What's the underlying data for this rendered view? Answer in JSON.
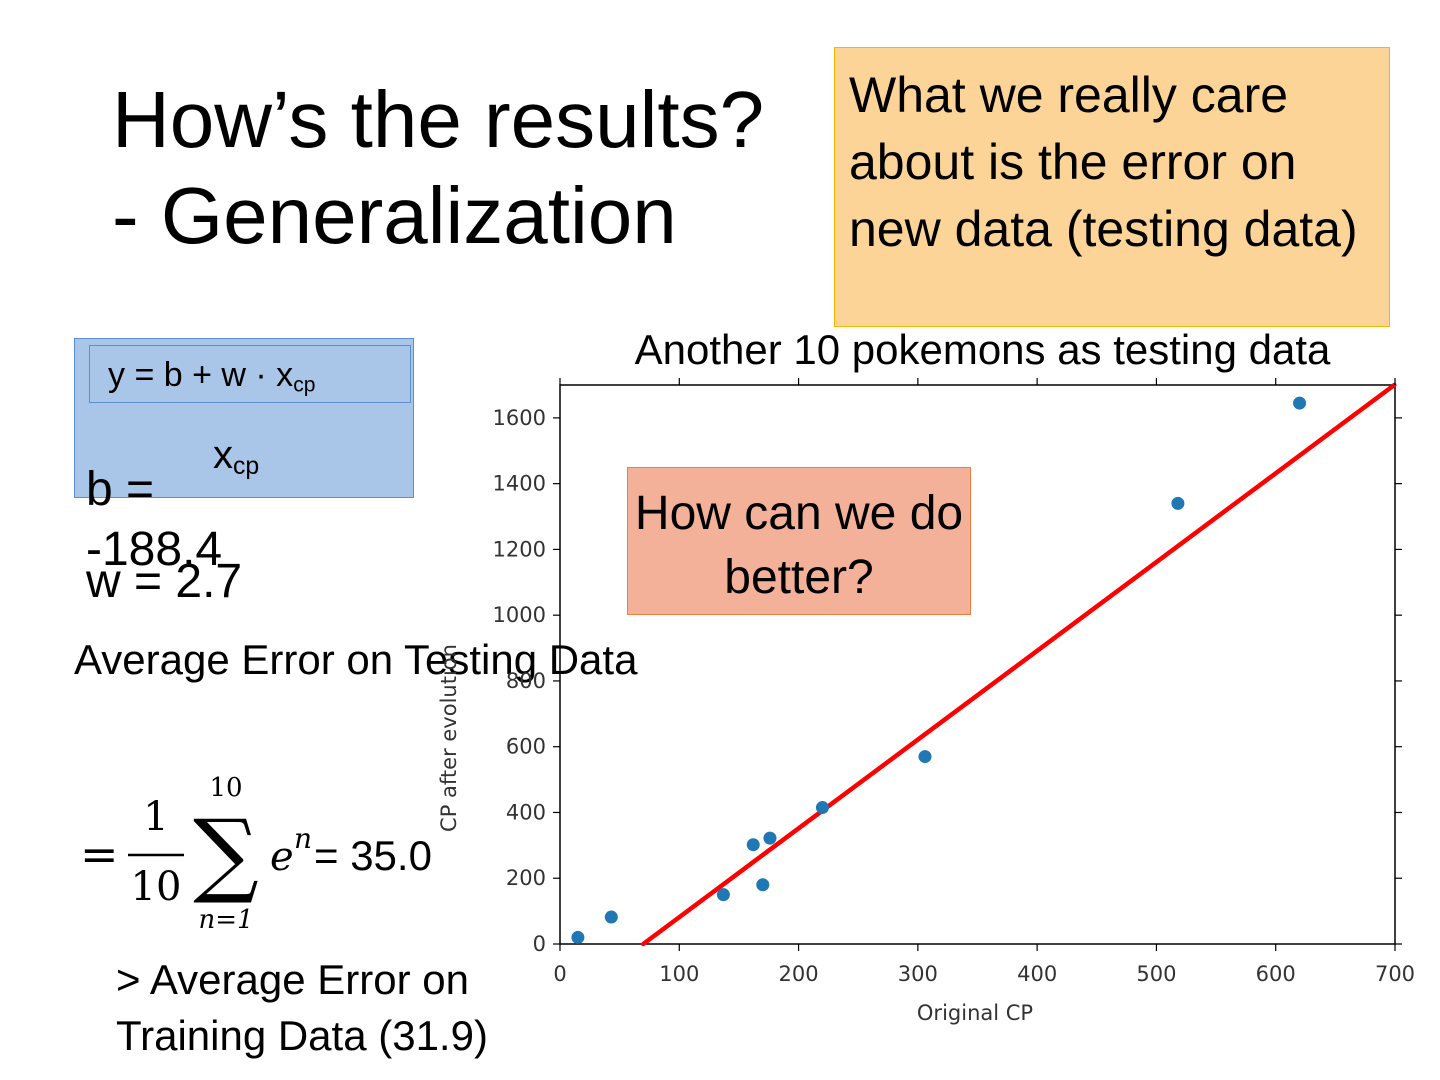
{
  "slide": {
    "title_line1": "How’s the results?",
    "title_line2": "- Generalization",
    "callout_top": "What we really care about is the error on new data (testing data)",
    "callout_mid": "How can we do better?",
    "model": {
      "formula_prefix": "y = b + w · x",
      "formula_subscript": "cp",
      "x_label": "x",
      "x_label_subscript": "cp",
      "b_text": "b = -188.4",
      "w_text": "w = 2.7"
    },
    "avg_error_label": "Average Error on Testing Data",
    "avg_error_formula": {
      "eq": "=",
      "numerator": "1",
      "denominator": "10",
      "sum_upper": "10",
      "sum_lower": "n=1",
      "sum_symbol": "∑",
      "term_base": "e",
      "term_sup": "n",
      "result": "= 35.0"
    },
    "comparison_text": "> Average Error on Training Data (31.9)"
  },
  "chart_data": {
    "type": "scatter",
    "title": "Another 10 pokemons as testing data",
    "xlabel": "Original CP",
    "ylabel": "CP after evolution",
    "xlim": [
      0,
      700
    ],
    "ylim": [
      0,
      1700
    ],
    "xticks": [
      0,
      100,
      200,
      300,
      400,
      500,
      600,
      700
    ],
    "yticks": [
      0,
      200,
      400,
      600,
      800,
      1000,
      1200,
      1400,
      1600
    ],
    "points": [
      {
        "x": 15,
        "y": 20
      },
      {
        "x": 43,
        "y": 82
      },
      {
        "x": 137,
        "y": 150
      },
      {
        "x": 162,
        "y": 302
      },
      {
        "x": 170,
        "y": 180
      },
      {
        "x": 176,
        "y": 322
      },
      {
        "x": 220,
        "y": 415
      },
      {
        "x": 306,
        "y": 570
      },
      {
        "x": 518,
        "y": 1340
      },
      {
        "x": 620,
        "y": 1645
      }
    ],
    "fit_line": {
      "b": -188.4,
      "w": 2.7
    },
    "point_color": "#1f77b4",
    "line_color": "#ff0000",
    "grid": false
  }
}
